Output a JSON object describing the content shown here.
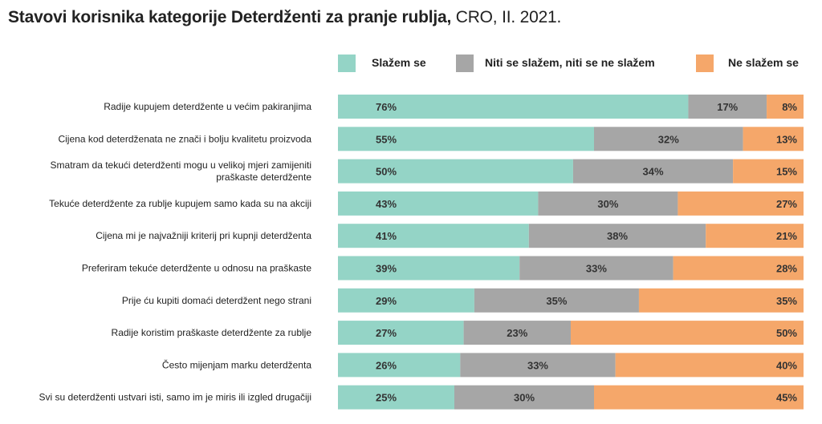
{
  "title": {
    "main": "Stavovi korisnika kategorije Deterdženti za pranje rublja,",
    "sub": "CRO, II. 2021."
  },
  "colors": {
    "agree": "#94d4c6",
    "neutral": "#a6a6a6",
    "disagree": "#f5a76a"
  },
  "chart_data": {
    "type": "bar",
    "orientation": "horizontal",
    "stacked": true,
    "unit": "%",
    "xlim": [
      0,
      100
    ],
    "legend_position": "top",
    "categories": [
      "Radije kupujem deterdžente u većim pakiranjima",
      "Cijena kod deterdženata ne znači i bolju kvalitetu proizvoda",
      "Smatram da tekući deterdženti mogu u velikoj mjeri zamijeniti praškaste deterdžente",
      "Tekuće deterdžente za rublje kupujem samo kada su na akciji",
      "Cijena mi je najvažniji kriterij pri kupnji deterdženta",
      "Preferiram tekuće deterdžente u odnosu na praškaste",
      "Prije ću kupiti domaći deterdžent nego strani",
      "Radije koristim praškaste deterdžente za rublje",
      "Često mijenjam marku deterdženta",
      "Svi su deterdženti ustvari isti, samo im je miris ili izgled drugačiji"
    ],
    "category_lines": [
      [
        "Radije kupujem deterdžente u većim pakiranjima"
      ],
      [
        "Cijena kod deterdženata ne znači i bolju kvalitetu proizvoda"
      ],
      [
        "Smatram da tekući deterdženti mogu u velikoj mjeri zamijeniti",
        "praškaste deterdžente"
      ],
      [
        "Tekuće deterdžente za rublje kupujem samo kada su na akciji"
      ],
      [
        "Cijena mi je najvažniji kriterij pri kupnji deterdženta"
      ],
      [
        "Preferiram tekuće deterdžente u odnosu na praškaste"
      ],
      [
        "Prije ću kupiti domaći deterdžent nego strani"
      ],
      [
        "Radije koristim praškaste deterdžente za rublje"
      ],
      [
        "Često mijenjam marku deterdženta"
      ],
      [
        "Svi su deterdženti ustvari isti, samo im je miris ili izgled drugačiji"
      ]
    ],
    "series": [
      {
        "name": "Slažem se",
        "values": [
          76,
          55,
          50,
          43,
          41,
          39,
          29,
          27,
          26,
          25
        ]
      },
      {
        "name": "Niti se slažem, niti se ne slažem",
        "values": [
          17,
          32,
          34,
          30,
          38,
          33,
          35,
          23,
          33,
          30
        ]
      },
      {
        "name": "Ne slažem se",
        "values": [
          8,
          13,
          15,
          27,
          21,
          28,
          35,
          50,
          40,
          45
        ]
      }
    ]
  }
}
